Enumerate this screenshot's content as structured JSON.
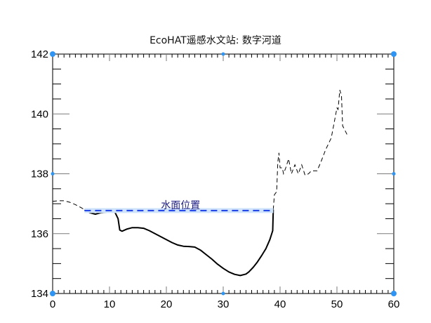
{
  "chart_data": {
    "type": "line",
    "title": "EcoHAT遥感水文站: 数字河道",
    "xlabel": "",
    "ylabel": "",
    "xlim": [
      0,
      60
    ],
    "ylim": [
      134,
      142
    ],
    "x_ticks": [
      0,
      10,
      20,
      30,
      40,
      50,
      60
    ],
    "y_ticks": [
      134,
      136,
      138,
      140,
      142
    ],
    "x_minor_step": 1,
    "y_minor_step": 0.5,
    "grid": false,
    "annotation": {
      "text": "水面位置",
      "x": 22.5,
      "y": 136.77
    },
    "series": [
      {
        "name": "left-bank-terrain",
        "style": "dashed",
        "color": "#000000",
        "points": [
          [
            0,
            137.08
          ],
          [
            1,
            137.1
          ],
          [
            2,
            137.1
          ],
          [
            3,
            137.05
          ],
          [
            4,
            136.97
          ],
          [
            5,
            136.87
          ],
          [
            5.6,
            136.8
          ]
        ]
      },
      {
        "name": "river-channel-cross-section",
        "style": "solid",
        "color": "#000000",
        "points": [
          [
            5.6,
            136.8
          ],
          [
            6.5,
            136.7
          ],
          [
            7.5,
            136.65
          ],
          [
            8.5,
            136.7
          ],
          [
            9.5,
            136.72
          ],
          [
            10.5,
            136.78
          ],
          [
            11,
            136.7
          ],
          [
            11.5,
            136.5
          ],
          [
            11.8,
            136.12
          ],
          [
            12.2,
            136.08
          ],
          [
            13,
            136.15
          ],
          [
            14,
            136.2
          ],
          [
            15,
            136.2
          ],
          [
            16,
            136.18
          ],
          [
            17,
            136.1
          ],
          [
            18,
            136.0
          ],
          [
            19,
            135.9
          ],
          [
            20,
            135.8
          ],
          [
            21,
            135.7
          ],
          [
            22,
            135.62
          ],
          [
            23,
            135.58
          ],
          [
            24,
            135.57
          ],
          [
            25,
            135.55
          ],
          [
            26,
            135.45
          ],
          [
            27,
            135.3
          ],
          [
            28,
            135.15
          ],
          [
            29,
            134.98
          ],
          [
            30,
            134.84
          ],
          [
            31,
            134.72
          ],
          [
            32,
            134.64
          ],
          [
            33,
            134.6
          ],
          [
            34,
            134.65
          ],
          [
            34.5,
            134.72
          ],
          [
            35.3,
            134.88
          ],
          [
            36,
            135.05
          ],
          [
            36.8,
            135.28
          ],
          [
            37.5,
            135.5
          ],
          [
            38.2,
            135.8
          ],
          [
            38.7,
            136.1
          ],
          [
            38.8,
            136.8
          ]
        ]
      },
      {
        "name": "right-bank-terrain",
        "style": "dashed",
        "color": "#000000",
        "points": [
          [
            38.8,
            136.8
          ],
          [
            39,
            137.3
          ],
          [
            39.4,
            137.4
          ],
          [
            39.6,
            138.4
          ],
          [
            39.8,
            138.7
          ],
          [
            40,
            138.2
          ],
          [
            40.4,
            138.2
          ],
          [
            40.6,
            138.0
          ],
          [
            41,
            138.2
          ],
          [
            41.5,
            138.5
          ],
          [
            42,
            138.0
          ],
          [
            42.6,
            138.3
          ],
          [
            43.2,
            138.0
          ],
          [
            43.8,
            138.3
          ],
          [
            44.4,
            137.95
          ],
          [
            45,
            138.0
          ],
          [
            45.5,
            138.1
          ],
          [
            46.5,
            138.1
          ],
          [
            47.2,
            138.4
          ],
          [
            48,
            138.8
          ],
          [
            49,
            139.2
          ],
          [
            49.6,
            139.8
          ],
          [
            50,
            140.2
          ],
          [
            50.2,
            140.15
          ],
          [
            50.5,
            140.8
          ],
          [
            50.8,
            140.6
          ],
          [
            51,
            139.6
          ],
          [
            51.3,
            139.5
          ],
          [
            51.8,
            139.3
          ]
        ]
      },
      {
        "name": "water-level",
        "style": "dashed",
        "color": "#1a3ee8",
        "highlight": "#cfe3fb",
        "points": [
          [
            5.6,
            136.77
          ],
          [
            38.8,
            136.77
          ]
        ]
      }
    ]
  },
  "colors": {
    "axis": "#7a7a7a",
    "corner_marker": "#2f95f5",
    "water": "#1a3ee8",
    "water_glow": "#cfe3fb",
    "label": "#1a1a80"
  }
}
